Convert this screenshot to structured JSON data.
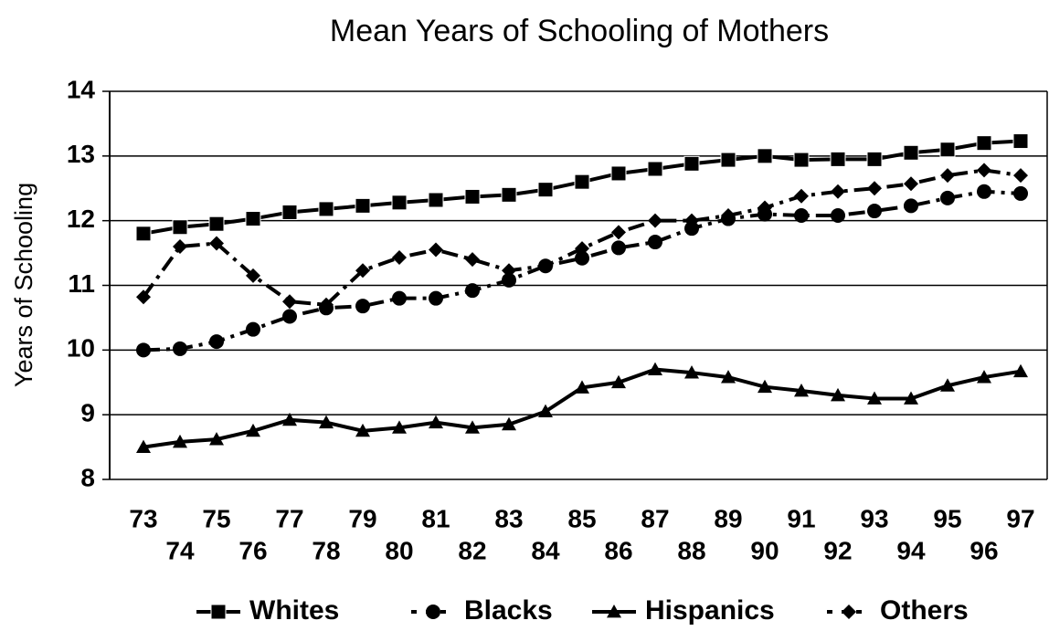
{
  "chart_data": {
    "type": "line",
    "title": "Mean Years of Schooling of Mothers",
    "y_label": "Years of Schooling",
    "categories": [
      "73",
      "74",
      "75",
      "76",
      "77",
      "78",
      "79",
      "80",
      "81",
      "82",
      "83",
      "84",
      "85",
      "86",
      "87",
      "88",
      "89",
      "90",
      "91",
      "92",
      "93",
      "94",
      "95",
      "96",
      "97"
    ],
    "series": [
      {
        "name": "Whites",
        "color": "#000000",
        "marker": "square",
        "dashed": false,
        "values": [
          11.8,
          11.9,
          11.95,
          12.03,
          12.13,
          12.18,
          12.23,
          12.28,
          12.32,
          12.37,
          12.4,
          12.48,
          12.6,
          12.73,
          12.8,
          12.88,
          12.94,
          13.0,
          12.94,
          12.95,
          12.95,
          13.05,
          13.1,
          13.2,
          13.23
        ]
      },
      {
        "name": "Blacks",
        "color": "#000000",
        "marker": "circle",
        "dashed": true,
        "values": [
          10.0,
          10.02,
          10.13,
          10.32,
          10.52,
          10.65,
          10.68,
          10.8,
          10.8,
          10.92,
          11.08,
          11.3,
          11.42,
          11.58,
          11.67,
          11.88,
          12.03,
          12.1,
          12.08,
          12.08,
          12.15,
          12.23,
          12.35,
          12.45,
          12.42
        ]
      },
      {
        "name": "Hispanics",
        "color": "#000000",
        "marker": "triangle",
        "dashed": false,
        "values": [
          8.5,
          8.58,
          8.62,
          8.75,
          8.92,
          8.88,
          8.75,
          8.8,
          8.88,
          8.8,
          8.85,
          9.05,
          9.42,
          9.5,
          9.7,
          9.65,
          9.58,
          9.43,
          9.37,
          9.3,
          9.25,
          9.25,
          9.45,
          9.58,
          9.67
        ]
      },
      {
        "name": "Others",
        "color": "#000000",
        "marker": "diamond",
        "dashed": true,
        "values": [
          10.82,
          11.6,
          11.65,
          11.15,
          10.75,
          10.7,
          11.23,
          11.43,
          11.55,
          11.4,
          11.23,
          11.3,
          11.57,
          11.82,
          12.0,
          12.0,
          12.08,
          12.2,
          12.38,
          12.45,
          12.5,
          12.57,
          12.7,
          12.78,
          12.7
        ]
      }
    ],
    "ylim": [
      8,
      14
    ],
    "yticks": [
      8,
      9,
      10,
      11,
      12,
      13,
      14
    ],
    "grid": true,
    "legend": "bottom"
  }
}
